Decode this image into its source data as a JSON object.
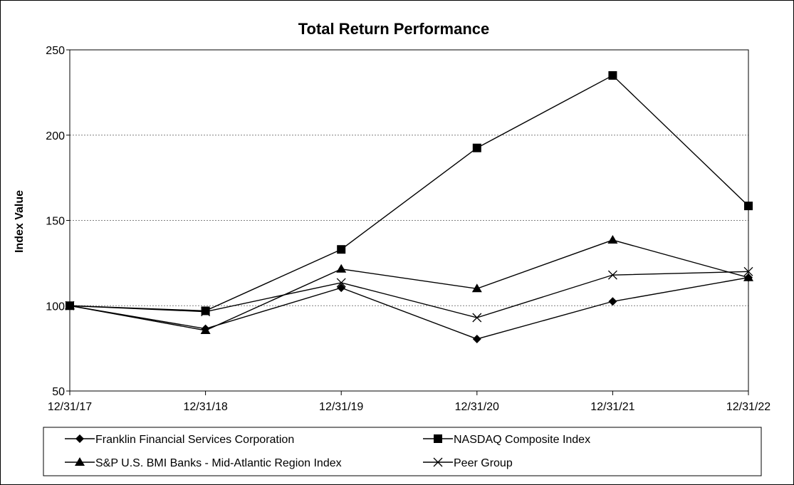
{
  "chart_data": {
    "type": "line",
    "title": "Total Return Performance",
    "xlabel": "",
    "ylabel": "Index Value",
    "categories": [
      "12/31/17",
      "12/31/18",
      "12/31/19",
      "12/31/20",
      "12/31/21",
      "12/31/22"
    ],
    "ylim": [
      50,
      250
    ],
    "yticks": [
      50,
      100,
      150,
      200,
      250
    ],
    "grid": "horizontal dashed",
    "legend": "bottom",
    "series": [
      {
        "name": "Franklin Financial Services Corporation",
        "marker": "diamond",
        "values": [
          100,
          86.5,
          110.5,
          80.5,
          102.5,
          116.5
        ]
      },
      {
        "name": "NASDAQ Composite Index",
        "marker": "square",
        "values": [
          100,
          97,
          133,
          192.5,
          235,
          158.5
        ]
      },
      {
        "name": "S&P U.S. BMI Banks - Mid-Atlantic Region Index",
        "marker": "triangle",
        "values": [
          100,
          85.5,
          121.5,
          110,
          138.5,
          116.5
        ]
      },
      {
        "name": "Peer Group",
        "marker": "x",
        "values": [
          100,
          96.5,
          113.5,
          93,
          118,
          120
        ]
      }
    ]
  }
}
